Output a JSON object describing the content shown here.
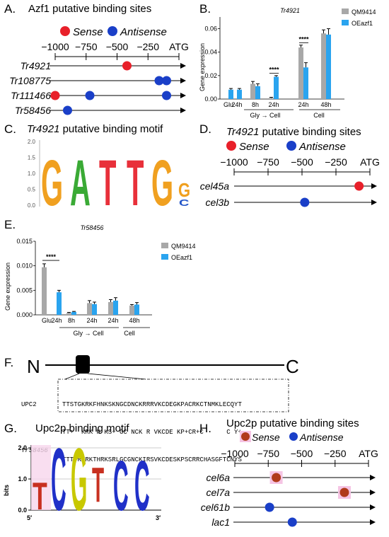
{
  "panels": {
    "A": {
      "letter": "A.",
      "title": "Azf1 putative binding sites",
      "legend": {
        "sense": "Sense",
        "antisense": "Antisense"
      },
      "axis_ticks": [
        "−1000",
        "−750",
        "−500",
        "−250",
        "ATG"
      ],
      "genes": [
        {
          "name": "Tr4921",
          "sites": [
            {
              "pos": -420,
              "type": "sense"
            }
          ]
        },
        {
          "name": "Tr108775",
          "sites": [
            {
              "pos": -160,
              "type": "antisense"
            },
            {
              "pos": -100,
              "type": "antisense"
            }
          ]
        },
        {
          "name": "Tr111466",
          "sites": [
            {
              "pos": -1000,
              "type": "sense"
            },
            {
              "pos": -720,
              "type": "antisense"
            },
            {
              "pos": -100,
              "type": "antisense"
            }
          ]
        },
        {
          "name": "Tr58456",
          "sites": [
            {
              "pos": -900,
              "type": "antisense"
            }
          ]
        }
      ]
    },
    "B": {
      "letter": "B.",
      "chart_title": "Tr4921",
      "ylabel": "Gene expression",
      "yticks": [
        "0.00",
        "0.02",
        "0.04",
        "0.06"
      ],
      "categories": [
        "Glu",
        "24h",
        "8h",
        "24h",
        "24h",
        "48h"
      ],
      "groups": {
        "gly": "Gly → Cell",
        "cell": "Cell"
      },
      "significance": "****",
      "legend": [
        "QM9414",
        "OEazf1"
      ]
    },
    "C": {
      "letter": "C.",
      "title_gene": "Tr4921",
      "title_rest": "putative binding motif",
      "yticks": [
        "0.0",
        "0.5",
        "1.0",
        "1.5",
        "2.0"
      ],
      "letters": [
        "G",
        "A",
        "T",
        "T",
        "G",
        "G",
        "C"
      ]
    },
    "D": {
      "letter": "D.",
      "title_gene": "Tr4921",
      "title_rest": "putative binding sites",
      "legend": {
        "sense": "Sense",
        "antisense": "Antisense"
      },
      "axis_ticks": [
        "−1000",
        "−750",
        "−500",
        "−250",
        "ATG"
      ],
      "genes": [
        {
          "name": "cel45a",
          "sites": [
            {
              "pos": -80,
              "type": "sense"
            }
          ]
        },
        {
          "name": "cel3b",
          "sites": [
            {
              "pos": -480,
              "type": "antisense"
            }
          ]
        }
      ]
    },
    "E": {
      "letter": "E.",
      "chart_title": "Tr58456",
      "ylabel": "Gene expression",
      "yticks": [
        "0.000",
        "0.005",
        "0.010",
        "0.015"
      ],
      "categories": [
        "Glu",
        "24h",
        "8h",
        "24h",
        "24h",
        "48h"
      ],
      "groups": {
        "gly": "Gly → Cell",
        "cell": "Cell"
      },
      "significance": "****",
      "legend": [
        "QM9414",
        "OEazf1"
      ]
    },
    "F": {
      "letter": "F.",
      "n_label": "N",
      "c_label": "C",
      "align": [
        {
          "label": "UPC2",
          "seq": "TTSTGKRKFHNKSKNGCDNCKRRRVKCDEGKPACRKCTNMKLECQYT"
        },
        {
          "label": "",
          "seq": "TT+  KRK H KS+ GC NCK R VKCDE KP+CR+C      C Y+"
        },
        {
          "label": "Tr58456",
          "seq": "TTTVRKRKTHRKSRLGCGNCKIRSVKCDESKPSCRRCHASGFTCNYS"
        }
      ]
    },
    "G": {
      "letter": "G.",
      "title": "Upc2p binding motif",
      "ylabel": "bits",
      "yticks": [
        "0.0",
        "1.0",
        "2.0"
      ],
      "five": "5′",
      "three": "3′",
      "letters": [
        "T",
        "C",
        "G",
        "T",
        "C",
        "C"
      ]
    },
    "H": {
      "letter": "H.",
      "title": "Upc2p putative binding sites",
      "legend": {
        "sense": "Sense",
        "antisense": "Antisense"
      },
      "axis_ticks": [
        "−1000",
        "−750",
        "−500",
        "−250",
        "ATG"
      ],
      "genes": [
        {
          "name": "cel6a",
          "sites": [
            {
              "pos": -690,
              "type": "sense"
            }
          ]
        },
        {
          "name": "cel7a",
          "sites": [
            {
              "pos": -180,
              "type": "sense"
            }
          ]
        },
        {
          "name": "cel61b",
          "sites": [
            {
              "pos": -740,
              "type": "antisense"
            }
          ]
        },
        {
          "name": "lac1",
          "sites": [
            {
              "pos": -570,
              "type": "antisense"
            }
          ]
        }
      ]
    }
  },
  "colors": {
    "sense": "#e8202a",
    "antisense": "#1a3fc8",
    "sense_dark": "#b03a1a",
    "qm9414": "#a8a8a8",
    "oeazf1": "#2aa4ef",
    "motif_A": "#3aaa35",
    "motif_C": "#2255c8",
    "motif_G": "#f0a020",
    "motif_T": "#e8303a",
    "motif_G2_C": "#c8c800",
    "motif_G2_C_blue": "#2030c8",
    "motif_G2_T": "#c83020",
    "motif_G2_A": "#20a020"
  },
  "chart_data": [
    {
      "type": "bar",
      "title": "Tr4921",
      "ylabel": "Gene expression",
      "categories": [
        "Glu",
        "24h",
        "8h",
        "24h",
        "24h",
        "48h"
      ],
      "ylim": [
        0,
        0.07
      ],
      "series": [
        {
          "name": "QM9414",
          "values": [
            0.0,
            0.0,
            0.013,
            0.001,
            0.044,
            0.056
          ]
        },
        {
          "name": "OEazf1",
          "values": [
            0.008,
            0.008,
            0.011,
            0.019,
            0.027,
            0.055
          ]
        }
      ],
      "errors": [
        [
          0.0,
          0.0,
          0.002,
          0.0005,
          0.002,
          0.003
        ],
        [
          0.001,
          0.001,
          0.002,
          0.001,
          0.004,
          0.005
        ]
      ]
    },
    {
      "type": "bar",
      "title": "Tr58456",
      "ylabel": "Gene expression",
      "categories": [
        "Glu",
        "24h",
        "8h",
        "24h",
        "24h",
        "48h"
      ],
      "ylim": [
        0,
        0.015
      ],
      "series": [
        {
          "name": "QM9414",
          "values": [
            0.0097,
            0.0,
            0.0004,
            0.0024,
            0.0026,
            0.0019
          ]
        },
        {
          "name": "OEazf1",
          "values": [
            0.0,
            0.0046,
            0.0006,
            0.0022,
            0.0029,
            0.0021
          ]
        }
      ],
      "errors": [
        [
          0.0007,
          0.0,
          0.0001,
          0.0005,
          0.0005,
          0.0002
        ],
        [
          0.0,
          0.0004,
          0.0001,
          0.0004,
          0.0006,
          0.0004
        ]
      ]
    }
  ]
}
